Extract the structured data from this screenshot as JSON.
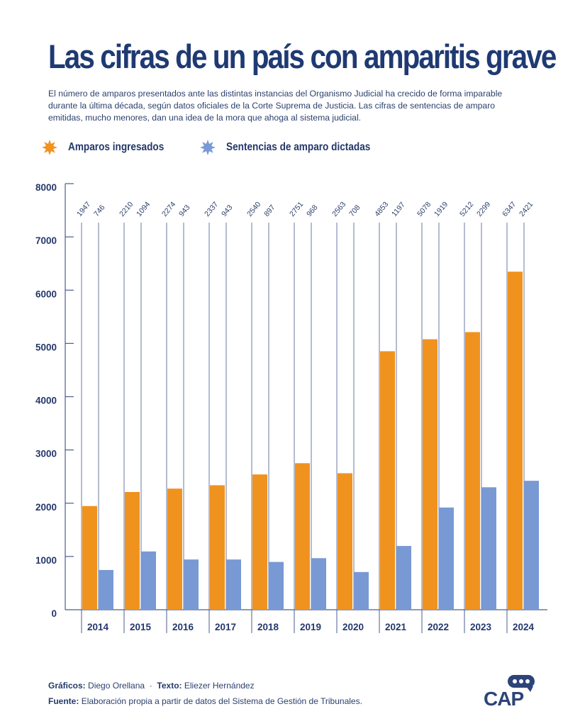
{
  "header": {
    "title": "Las cifras de un país con amparitis grave",
    "subtitle": "El número de amparos presentados ante las distintas instancias del Organismo Judicial ha crecido de forma imparable durante la última década, según datos oficiales de la Corte Suprema de Justicia. Las cifras de sentencias de amparo emitidas, mucho menores, dan una idea de la mora que ahoga al sistema judicial."
  },
  "legend": [
    {
      "label": "Amparos ingresados",
      "icon": "star-burst-icon",
      "color": "#f0921e"
    },
    {
      "label": "Sentencias de amparo dictadas",
      "icon": "star-burst-icon",
      "color": "#7899d4"
    }
  ],
  "chart_data": {
    "type": "bar",
    "title": "Las cifras de un país con amparitis grave",
    "xlabel": "",
    "ylabel": "",
    "categories": [
      "2014",
      "2015",
      "2016",
      "2017",
      "2018",
      "2019",
      "2020",
      "2021",
      "2022",
      "2023",
      "2024"
    ],
    "series": [
      {
        "name": "Amparos ingresados",
        "color": "#f0921e",
        "values": [
          1947,
          2210,
          2274,
          2337,
          2540,
          2751,
          2563,
          4853,
          5078,
          5212,
          6347
        ]
      },
      {
        "name": "Sentencias de amparo dictadas",
        "color": "#7899d4",
        "values": [
          746,
          1094,
          943,
          943,
          897,
          968,
          708,
          1197,
          1919,
          2299,
          2421
        ]
      }
    ],
    "ylim": [
      0,
      8000
    ],
    "yticks": [
      0,
      1000,
      2000,
      3000,
      4000,
      5000,
      6000,
      7000,
      8000
    ],
    "grid": false,
    "legend_position": "top-left",
    "data_labels": "rotated above chart"
  },
  "footer": {
    "graphics_label": "Gráficos:",
    "graphics_value": "Diego Orellana",
    "separator": "·",
    "text_label": "Texto:",
    "text_value": "Eliezer Hernández",
    "source_label": "Fuente:",
    "source_value": "Elaboración propia a partir de datos del Sistema de Gestión de Tribunales."
  },
  "logo": {
    "text": "CAP",
    "icon": "speech-bubble-icon"
  }
}
